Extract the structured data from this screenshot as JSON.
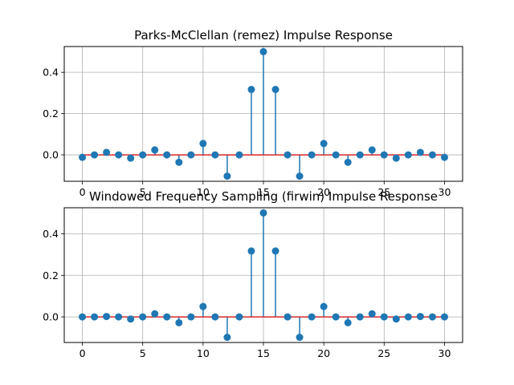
{
  "chart_data": [
    {
      "type": "stem",
      "title": "Parks-McClellan (remez) Impulse Response",
      "x": [
        0,
        1,
        2,
        3,
        4,
        5,
        6,
        7,
        8,
        9,
        10,
        11,
        12,
        13,
        14,
        15,
        16,
        17,
        18,
        19,
        20,
        21,
        22,
        23,
        24,
        25,
        26,
        27,
        28,
        29,
        30
      ],
      "values": [
        -0.012,
        0.0,
        0.012,
        0.0,
        -0.016,
        0.0,
        0.024,
        0.0,
        -0.036,
        0.0,
        0.055,
        0.0,
        -0.103,
        0.0,
        0.317,
        0.5,
        0.317,
        0.0,
        -0.103,
        0.0,
        0.055,
        0.0,
        -0.036,
        0.0,
        0.024,
        0.0,
        -0.016,
        0.0,
        0.012,
        0.0,
        -0.012
      ],
      "xticks": [
        0,
        5,
        10,
        15,
        20,
        25,
        30
      ],
      "xtick_labels": [
        "0",
        "5",
        "10",
        "15",
        "20",
        "25",
        "30"
      ],
      "yticks": [
        0.0,
        0.2,
        0.4
      ],
      "ytick_labels": [
        "0.0",
        "0.2",
        "0.4"
      ],
      "xlim": [
        -1.5,
        31.5
      ],
      "ylim": [
        -0.128,
        0.525
      ],
      "grid": true,
      "marker_color": "#1f77b4",
      "stem_color": "#1f77b4",
      "baseline_color": "#d62728"
    },
    {
      "type": "stem",
      "title": "Windowed Frequency Sampling (firwin) Impulse Response",
      "x": [
        0,
        1,
        2,
        3,
        4,
        5,
        6,
        7,
        8,
        9,
        10,
        11,
        12,
        13,
        14,
        15,
        16,
        17,
        18,
        19,
        20,
        21,
        22,
        23,
        24,
        25,
        26,
        27,
        28,
        29,
        30
      ],
      "values": [
        0.0,
        0.0,
        0.002,
        0.0,
        -0.01,
        0.0,
        0.015,
        0.0,
        -0.028,
        0.0,
        0.05,
        0.0,
        -0.098,
        0.0,
        0.317,
        0.5,
        0.317,
        0.0,
        -0.098,
        0.0,
        0.05,
        0.0,
        -0.028,
        0.0,
        0.015,
        0.0,
        -0.01,
        0.0,
        0.002,
        0.0,
        0.0
      ],
      "xticks": [
        0,
        5,
        10,
        15,
        20,
        25,
        30
      ],
      "xtick_labels": [
        "0",
        "5",
        "10",
        "15",
        "20",
        "25",
        "30"
      ],
      "yticks": [
        0.0,
        0.2,
        0.4
      ],
      "ytick_labels": [
        "0.0",
        "0.2",
        "0.4"
      ],
      "xlim": [
        -1.5,
        31.5
      ],
      "ylim": [
        -0.123,
        0.525
      ],
      "grid": true,
      "marker_color": "#1f77b4",
      "stem_color": "#1f77b4",
      "baseline_color": "#d62728"
    }
  ]
}
